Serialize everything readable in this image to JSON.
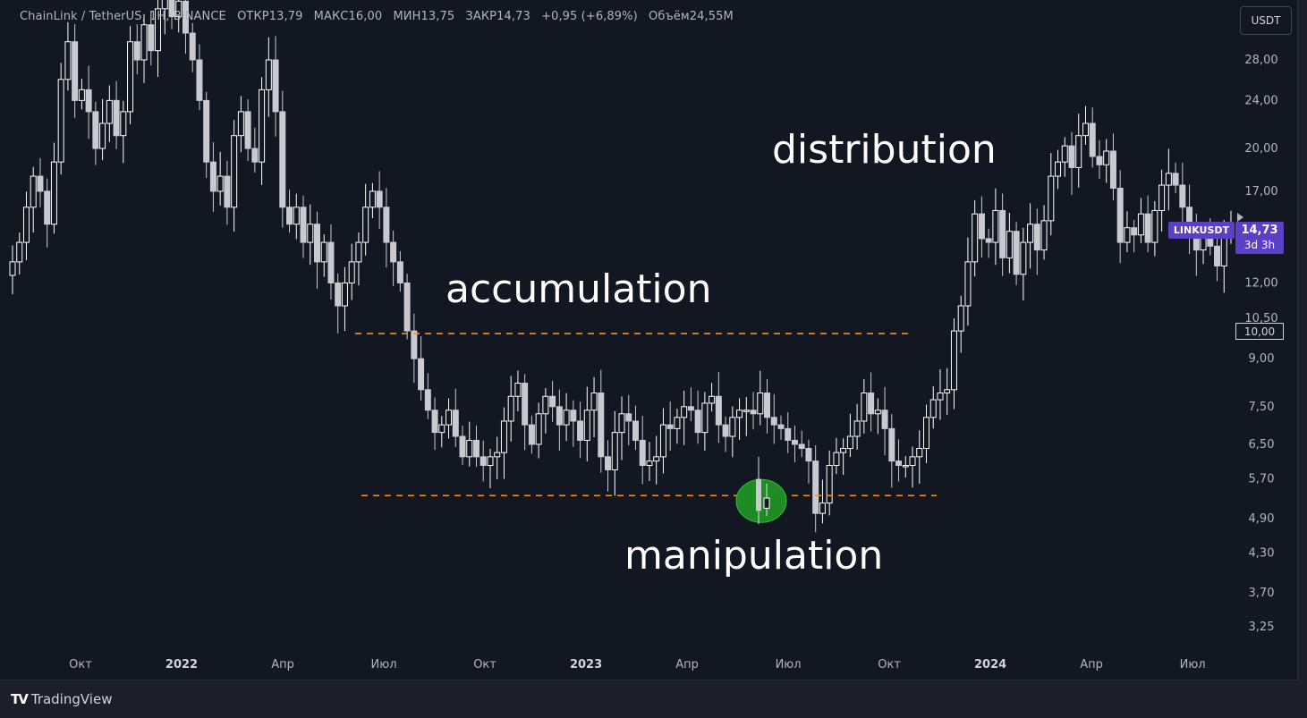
{
  "header": {
    "symbol": "ChainLink / TetherUS, 1H, BINANCE",
    "open": "ОТКР13,79",
    "high": "МАКС16,00",
    "low": "МИН13,75",
    "close": "ЗАКР14,73",
    "change": "+0,95 (+6,89%)",
    "volume": "Объём24,55M"
  },
  "currency_button": "USDT",
  "annotations": {
    "distribution": "distribution",
    "accumulation": "accumulation",
    "manipulation": "manipulation"
  },
  "price_tag": {
    "symbol": "LINKUSDT",
    "price": "14,73",
    "countdown": "3d 3h"
  },
  "marker_label": "10,00",
  "footer": {
    "brand": "TradingView"
  },
  "colors": {
    "background": "#131722",
    "candle_up": "#ffffff",
    "candle_down": "#c9cacf",
    "range_lines": "#f0961d",
    "manipulation_highlight": "#1f8b24",
    "price_tag": "#5b3fc4"
  },
  "chart_data": {
    "type": "candlestick",
    "y_scale": "log",
    "ylim": [
      2.9,
      40
    ],
    "y_ticks": [
      {
        "value": 28.0,
        "label": "28,00"
      },
      {
        "value": 24.0,
        "label": "24,00"
      },
      {
        "value": 20.0,
        "label": "20,00"
      },
      {
        "value": 17.0,
        "label": "17,00"
      },
      {
        "value": 12.0,
        "label": "12,00"
      },
      {
        "value": 10.5,
        "label": "10,50"
      },
      {
        "value": 9.0,
        "label": "9,00"
      },
      {
        "value": 7.5,
        "label": "7,50"
      },
      {
        "value": 6.5,
        "label": "6,50"
      },
      {
        "value": 5.7,
        "label": "5,70"
      },
      {
        "value": 4.9,
        "label": "4,90"
      },
      {
        "value": 4.3,
        "label": "4,30"
      },
      {
        "value": 3.7,
        "label": "3,70"
      },
      {
        "value": 3.25,
        "label": "3,25"
      }
    ],
    "x_ticks": [
      {
        "date": "2021-10",
        "label": "Окт",
        "bold": false
      },
      {
        "date": "2022-01",
        "label": "2022",
        "bold": true
      },
      {
        "date": "2022-04",
        "label": "Апр",
        "bold": false
      },
      {
        "date": "2022-07",
        "label": "Июл",
        "bold": false
      },
      {
        "date": "2022-10",
        "label": "Окт",
        "bold": false
      },
      {
        "date": "2023-01",
        "label": "2023",
        "bold": true
      },
      {
        "date": "2023-04",
        "label": "Апр",
        "bold": false
      },
      {
        "date": "2023-07",
        "label": "Июл",
        "bold": false
      },
      {
        "date": "2023-10",
        "label": "Окт",
        "bold": false
      },
      {
        "date": "2024-01",
        "label": "2024",
        "bold": true
      },
      {
        "date": "2024-04",
        "label": "Апр",
        "bold": false
      },
      {
        "date": "2024-07",
        "label": "Июл",
        "bold": false
      }
    ],
    "ohlc_close_approx": [
      13,
      14,
      16,
      18,
      17,
      15,
      19,
      26,
      30,
      24,
      25,
      23,
      20,
      22,
      24,
      21,
      23,
      30,
      28,
      32,
      29,
      34,
      36,
      33,
      35,
      31,
      28,
      24,
      19,
      17,
      18,
      16,
      21,
      23,
      20,
      19,
      25,
      28,
      23,
      16,
      15,
      16,
      14,
      15,
      13,
      14,
      12,
      11,
      12,
      13,
      14,
      16,
      17,
      16,
      14,
      13,
      12,
      10,
      9,
      8,
      7.4,
      6.8,
      7.0,
      7.4,
      6.7,
      6.2,
      6.6,
      6.2,
      6.0,
      6.2,
      6.3,
      7.1,
      7.8,
      8.2,
      7.0,
      6.5,
      7.3,
      7.8,
      7.5,
      7.0,
      7.4,
      7.1,
      6.6,
      7.4,
      7.9,
      6.2,
      5.9,
      6.8,
      7.3,
      7.1,
      6.6,
      6.0,
      6.1,
      6.2,
      7.0,
      6.9,
      7.2,
      7.5,
      7.4,
      6.8,
      7.6,
      7.8,
      7.0,
      6.7,
      7.2,
      7.4,
      7.4,
      7.3,
      7.9,
      7.2,
      7.0,
      6.9,
      6.6,
      6.5,
      6.4,
      6.1,
      5.0,
      5.2,
      6.0,
      6.3,
      6.4,
      6.7,
      7.1,
      7.9,
      7.3,
      7.4,
      6.9,
      6.1,
      6.0,
      6.0,
      6.2,
      6.4,
      7.2,
      7.7,
      7.9,
      8.0,
      10.0,
      11.0,
      13.0,
      15.6,
      14.2,
      14.0,
      15.8,
      13.2,
      14.6,
      12.4,
      14.0,
      15.0,
      13.6,
      15.2,
      18.0,
      19.0,
      20.2,
      18.6,
      21.0,
      22.0,
      19.4,
      18.8,
      19.8,
      17.2,
      14.0,
      14.8,
      14.4,
      15.6,
      14.0,
      15.8,
      17.4,
      18.2,
      17.4,
      16.0,
      14.6,
      13.6,
      14.3,
      13.8,
      12.8,
      14.5,
      14.73
    ],
    "range_high": 9.9,
    "range_low": 5.35,
    "last_price": 14.73,
    "grid": false,
    "legend": "none"
  }
}
